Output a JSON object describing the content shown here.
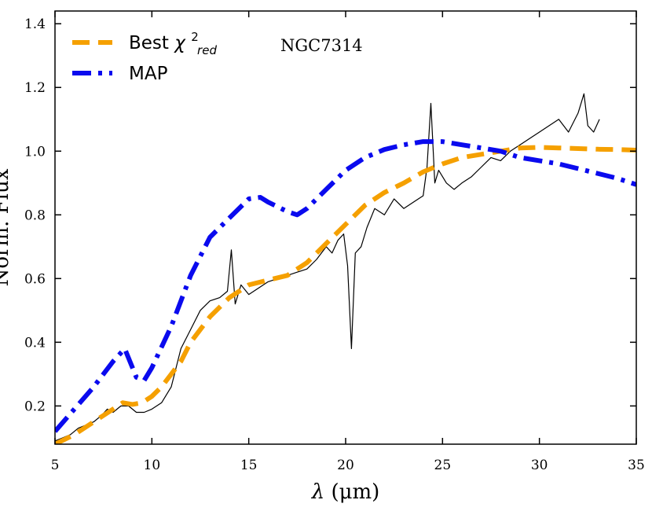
{
  "chart_data": {
    "type": "line",
    "title": "",
    "annotation": "NGC7314",
    "xlabel_symbol": "λ",
    "xlabel_unit": "(μm)",
    "ylabel": "Norm. Flux",
    "xlim": [
      5,
      35
    ],
    "ylim": [
      0.08,
      1.44
    ],
    "x_ticks": [
      5,
      10,
      15,
      20,
      25,
      30,
      35
    ],
    "x_tick_labels": [
      "5",
      "10",
      "15",
      "20",
      "25",
      "30",
      "35"
    ],
    "y_ticks": [
      0.2,
      0.4,
      0.6,
      0.8,
      1.0,
      1.2,
      1.4
    ],
    "y_tick_labels": [
      "0.2",
      "0.4",
      "0.6",
      "0.8",
      "1.0",
      "1.2",
      "1.4"
    ],
    "legend_position": "top-left",
    "series": [
      {
        "name": "observed-spectrum",
        "legend": "",
        "color": "#000000",
        "style": "solid",
        "x": [
          5.0,
          5.4,
          5.8,
          6.2,
          6.6,
          7.0,
          7.4,
          7.7,
          8.0,
          8.4,
          8.8,
          9.2,
          9.6,
          10.0,
          10.5,
          11.0,
          11.5,
          12.0,
          12.5,
          13.0,
          13.5,
          13.9,
          14.1,
          14.3,
          14.6,
          15.0,
          15.5,
          16.0,
          16.5,
          17.0,
          17.5,
          18.0,
          18.5,
          19.0,
          19.3,
          19.6,
          19.9,
          20.1,
          20.3,
          20.5,
          20.8,
          21.1,
          21.5,
          22.0,
          22.5,
          23.0,
          23.5,
          24.0,
          24.2,
          24.4,
          24.6,
          24.8,
          25.2,
          25.6,
          26.0,
          26.5,
          27.0,
          27.5,
          28.0,
          28.5,
          29.0,
          29.5,
          30.0,
          30.5,
          31.0,
          31.5,
          32.0,
          32.3,
          32.5,
          32.8,
          33.1
        ],
        "y": [
          0.09,
          0.1,
          0.11,
          0.13,
          0.14,
          0.15,
          0.17,
          0.19,
          0.18,
          0.2,
          0.2,
          0.18,
          0.18,
          0.19,
          0.21,
          0.26,
          0.38,
          0.44,
          0.5,
          0.53,
          0.54,
          0.56,
          0.69,
          0.52,
          0.58,
          0.55,
          0.57,
          0.59,
          0.6,
          0.61,
          0.62,
          0.63,
          0.66,
          0.7,
          0.68,
          0.72,
          0.74,
          0.64,
          0.38,
          0.68,
          0.7,
          0.76,
          0.82,
          0.8,
          0.85,
          0.82,
          0.84,
          0.86,
          0.95,
          1.15,
          0.9,
          0.94,
          0.9,
          0.88,
          0.9,
          0.92,
          0.95,
          0.98,
          0.97,
          1.0,
          1.02,
          1.04,
          1.06,
          1.08,
          1.1,
          1.06,
          1.12,
          1.18,
          1.08,
          1.06,
          1.1
        ]
      },
      {
        "name": "best-chi2-red",
        "legend": "Best",
        "legend_math": "χ",
        "legend_sup": "2",
        "legend_sub": "red",
        "color": "#f5a000",
        "style": "dashed",
        "x": [
          5,
          6,
          7,
          8,
          8.5,
          9,
          9.5,
          10,
          10.5,
          11,
          11.5,
          12,
          13,
          14,
          15,
          16,
          17,
          18,
          19,
          20,
          21,
          22,
          23,
          24,
          25,
          26,
          27,
          28,
          29,
          30,
          31,
          32,
          33,
          34,
          35
        ],
        "y": [
          0.08,
          0.11,
          0.15,
          0.19,
          0.21,
          0.205,
          0.21,
          0.23,
          0.26,
          0.3,
          0.34,
          0.4,
          0.48,
          0.54,
          0.58,
          0.595,
          0.61,
          0.65,
          0.71,
          0.77,
          0.83,
          0.87,
          0.9,
          0.935,
          0.96,
          0.98,
          0.99,
          1.0,
          1.01,
          1.012,
          1.01,
          1.008,
          1.006,
          1.005,
          1.003
        ]
      },
      {
        "name": "map",
        "legend": "MAP",
        "color": "#0a0aee",
        "style": "dashdot",
        "x": [
          5,
          6,
          7,
          8,
          8.6,
          9.2,
          9.6,
          10,
          11,
          12,
          13,
          14,
          15,
          15.6,
          16,
          17,
          17.5,
          18,
          19,
          20,
          21,
          22,
          23,
          24,
          25,
          26,
          27,
          28,
          29,
          30,
          31,
          32,
          33,
          34,
          35
        ],
        "y": [
          0.12,
          0.19,
          0.26,
          0.34,
          0.38,
          0.29,
          0.28,
          0.32,
          0.45,
          0.61,
          0.73,
          0.79,
          0.85,
          0.855,
          0.84,
          0.81,
          0.8,
          0.82,
          0.88,
          0.94,
          0.98,
          1.005,
          1.02,
          1.03,
          1.03,
          1.02,
          1.01,
          1.0,
          0.98,
          0.97,
          0.96,
          0.945,
          0.93,
          0.915,
          0.895
        ]
      }
    ]
  }
}
